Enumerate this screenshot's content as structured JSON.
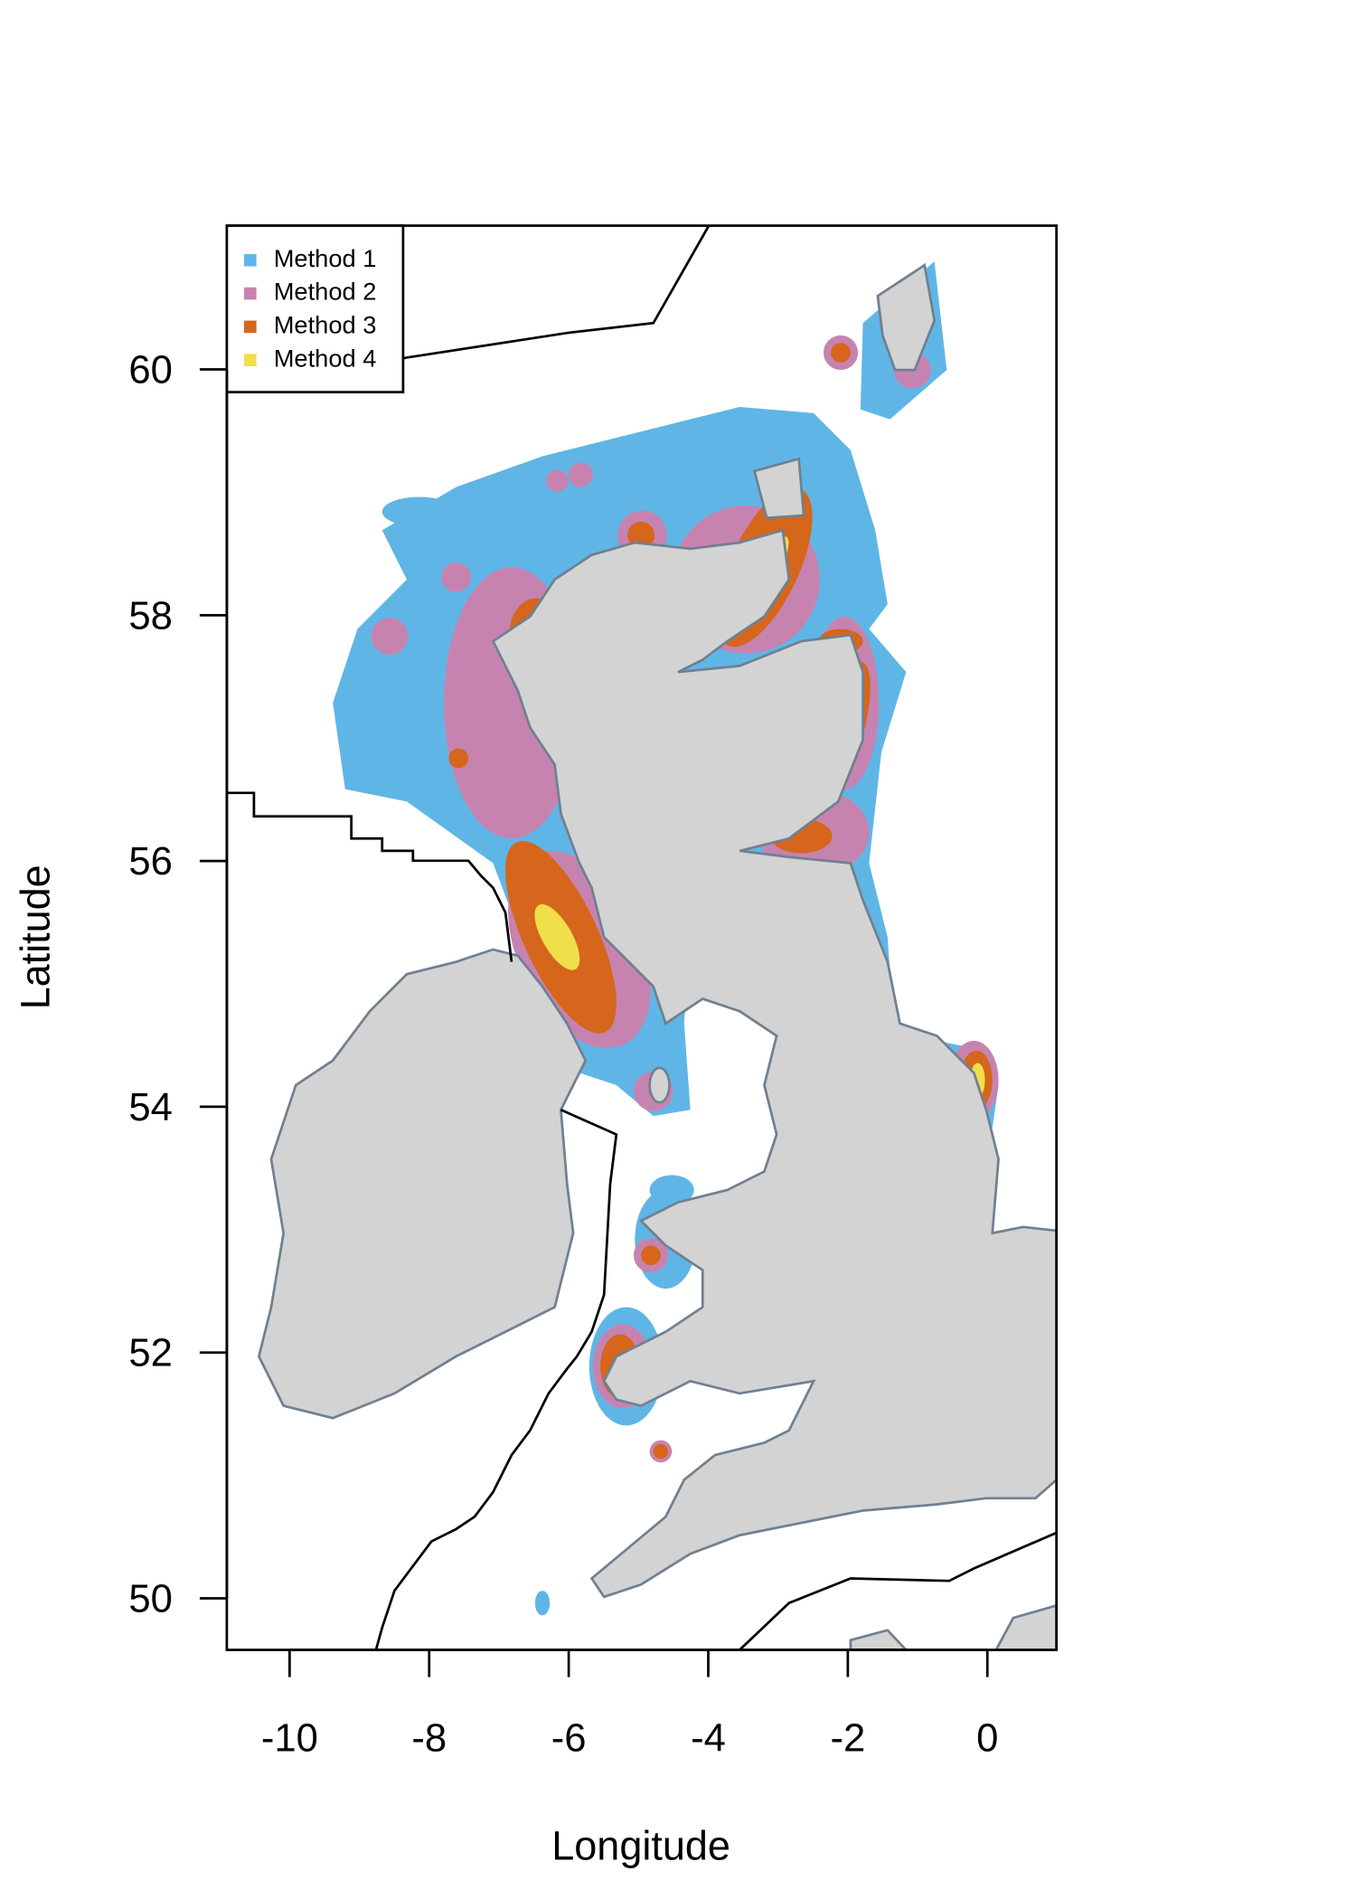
{
  "chart_data": {
    "type": "map",
    "xlabel": "Longitude",
    "ylabel": "Latitude",
    "xlim": [
      -10.9,
      0.99
    ],
    "ylim": [
      49.58,
      61.17
    ],
    "xticks": [
      -10,
      -8,
      -6,
      -4,
      -2,
      0
    ],
    "yticks": [
      50,
      52,
      54,
      56,
      58,
      60
    ],
    "legend": "topleft",
    "series": [
      {
        "name": "Method 1",
        "color": "#5fb6e6"
      },
      {
        "name": "Method 2",
        "color": "#c783b0"
      },
      {
        "name": "Method 3",
        "color": "#d5661c"
      },
      {
        "name": "Method 4",
        "color": "#f0df4a"
      }
    ]
  }
}
